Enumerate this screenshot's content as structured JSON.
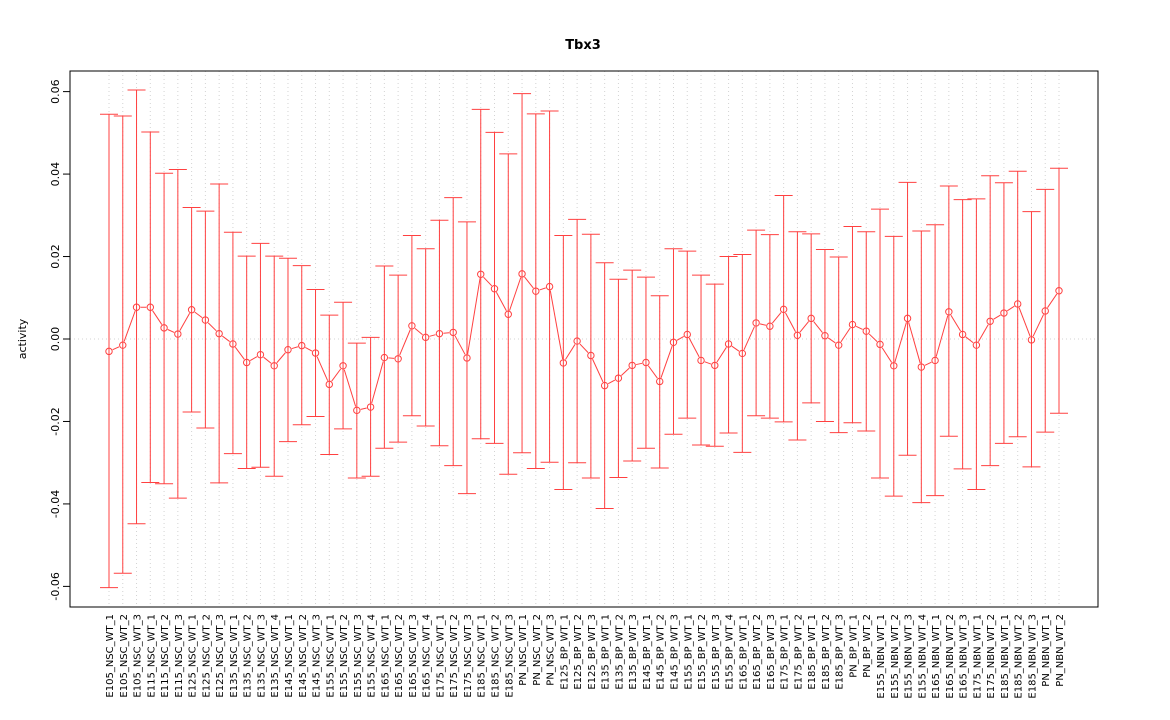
{
  "chart_data": {
    "type": "line",
    "title": "Tbx3",
    "xlabel": "",
    "ylabel": "activity",
    "ylim": [
      -0.065,
      0.065
    ],
    "yticks": [
      -0.06,
      -0.04,
      -0.02,
      0.0,
      0.02,
      0.04,
      0.06
    ],
    "ytick_labels": [
      "-0.06",
      "-0.04",
      "-0.02",
      "0.00",
      "0.02",
      "0.04",
      "0.06"
    ],
    "grid": true,
    "color": "#ff4040",
    "categories": [
      "E105_NSC_WT_1",
      "E105_NSC_WT_2",
      "E105_NSC_WT_3",
      "E115_NSC_WT_1",
      "E115_NSC_WT_2",
      "E115_NSC_WT_3",
      "E125_NSC_WT_1",
      "E125_NSC_WT_2",
      "E125_NSC_WT_3",
      "E135_NSC_WT_1",
      "E135_NSC_WT_2",
      "E135_NSC_WT_3",
      "E135_NSC_WT_4",
      "E145_NSC_WT_1",
      "E145_NSC_WT_2",
      "E145_NSC_WT_3",
      "E155_NSC_WT_1",
      "E155_NSC_WT_2",
      "E155_NSC_WT_3",
      "E155_NSC_WT_4",
      "E165_NSC_WT_1",
      "E165_NSC_WT_2",
      "E165_NSC_WT_3",
      "E165_NSC_WT_4",
      "E175_NSC_WT_1",
      "E175_NSC_WT_2",
      "E175_NSC_WT_3",
      "E185_NSC_WT_1",
      "E185_NSC_WT_2",
      "E185_NSC_WT_3",
      "PN_NSC_WT_1",
      "PN_NSC_WT_2",
      "PN_NSC_WT_3",
      "E125_BP_WT_1",
      "E125_BP_WT_2",
      "E125_BP_WT_3",
      "E135_BP_WT_1",
      "E135_BP_WT_2",
      "E135_BP_WT_3",
      "E145_BP_WT_1",
      "E145_BP_WT_2",
      "E145_BP_WT_3",
      "E155_BP_WT_1",
      "E155_BP_WT_2",
      "E155_BP_WT_3",
      "E155_BP_WT_4",
      "E165_BP_WT_1",
      "E165_BP_WT_2",
      "E165_BP_WT_3",
      "E175_BP_WT_1",
      "E175_BP_WT_2",
      "E185_BP_WT_1",
      "E185_BP_WT_2",
      "E185_BP_WT_3",
      "PN_BP_WT_1",
      "PN_BP_WT_2",
      "E155_NBN_WT_1",
      "E155_NBN_WT_2",
      "E155_NBN_WT_3",
      "E155_NBN_WT_4",
      "E165_NBN_WT_1",
      "E165_NBN_WT_2",
      "E165_NBN_WT_3",
      "E175_NBN_WT_1",
      "E175_NBN_WT_2",
      "E185_NBN_WT_1",
      "E185_NBN_WT_2",
      "E185_NBN_WT_3",
      "PN_NBN_WT_1",
      "PN_NBN_WT_2"
    ],
    "values": [
      -0.003,
      -0.0015,
      0.0077,
      0.0077,
      0.0027,
      0.0012,
      0.0071,
      0.0046,
      0.0013,
      -0.0012,
      -0.0057,
      -0.0038,
      -0.0065,
      -0.0026,
      -0.0016,
      -0.0034,
      -0.011,
      -0.0065,
      -0.0173,
      -0.0165,
      -0.0045,
      -0.0048,
      0.0032,
      0.0004,
      0.0013,
      0.0016,
      -0.0046,
      0.0157,
      0.0122,
      0.006,
      0.0158,
      0.0116,
      0.0127,
      -0.0058,
      -0.0005,
      -0.004,
      -0.0113,
      -0.0095,
      -0.0064,
      -0.0057,
      -0.0103,
      -0.0008,
      0.0011,
      -0.0052,
      -0.0064,
      -0.0012,
      -0.0035,
      0.0039,
      0.0031,
      0.0072,
      0.0009,
      0.005,
      0.0008,
      -0.0015,
      0.0035,
      0.0019,
      -0.0013,
      -0.0065,
      0.005,
      -0.0068,
      -0.0052,
      0.0066,
      0.0011,
      -0.0015,
      0.0043,
      0.0063,
      0.0085,
      -0.0002,
      0.0068,
      0.0117
    ],
    "upper": [
      0.0545,
      0.0541,
      0.0604,
      0.0502,
      0.0402,
      0.0411,
      0.0319,
      0.031,
      0.0376,
      0.0259,
      0.0201,
      0.0232,
      0.0201,
      0.0196,
      0.0178,
      0.012,
      0.0058,
      0.0089,
      -0.001,
      0.0004,
      0.0177,
      0.0155,
      0.0251,
      0.0219,
      0.0288,
      0.0343,
      0.0284,
      0.0557,
      0.0501,
      0.0449,
      0.0595,
      0.0546,
      0.0553,
      0.0251,
      0.029,
      0.0254,
      0.0185,
      0.0145,
      0.0167,
      0.015,
      0.0105,
      0.0219,
      0.0213,
      0.0155,
      0.0133,
      0.02,
      0.0205,
      0.0264,
      0.0253,
      0.0348,
      0.026,
      0.0255,
      0.0217,
      0.0199,
      0.0273,
      0.026,
      0.0315,
      0.0249,
      0.038,
      0.0262,
      0.0277,
      0.0371,
      0.0338,
      0.034,
      0.0396,
      0.0379,
      0.0407,
      0.0309,
      0.0363,
      0.0414
    ],
    "lower": [
      -0.0603,
      -0.0568,
      -0.0448,
      -0.0348,
      -0.0351,
      -0.0386,
      -0.0177,
      -0.0216,
      -0.0349,
      -0.0278,
      -0.0314,
      -0.0311,
      -0.0333,
      -0.0249,
      -0.0208,
      -0.0188,
      -0.028,
      -0.0218,
      -0.0337,
      -0.0333,
      -0.0265,
      -0.025,
      -0.0186,
      -0.0211,
      -0.0259,
      -0.0307,
      -0.0375,
      -0.0242,
      -0.0253,
      -0.0328,
      -0.0276,
      -0.0314,
      -0.0299,
      -0.0365,
      -0.03,
      -0.0337,
      -0.0411,
      -0.0336,
      -0.0296,
      -0.0265,
      -0.0313,
      -0.0231,
      -0.0192,
      -0.0257,
      -0.026,
      -0.0228,
      -0.0275,
      -0.0186,
      -0.0192,
      -0.0201,
      -0.0245,
      -0.0155,
      -0.02,
      -0.0227,
      -0.0203,
      -0.0223,
      -0.0337,
      -0.0381,
      -0.0282,
      -0.0397,
      -0.038,
      -0.0236,
      -0.0315,
      -0.0365,
      -0.0307,
      -0.0253,
      -0.0237,
      -0.031,
      -0.0226,
      -0.018
    ]
  }
}
